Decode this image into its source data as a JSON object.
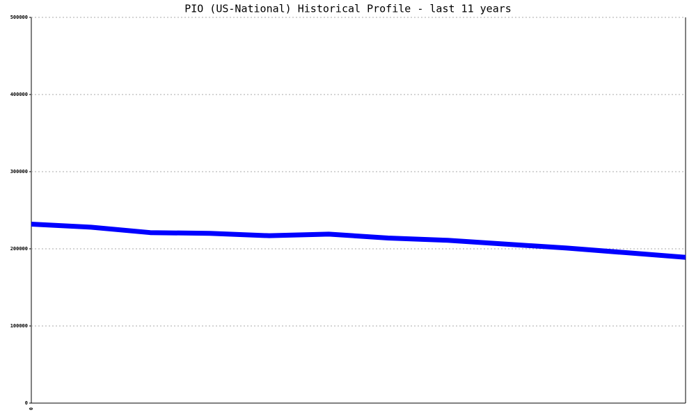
{
  "chart_data": {
    "type": "line",
    "title": "PIO (US-National) Historical Profile - last 11 years",
    "categories": [
      "0",
      null,
      null,
      null,
      null,
      null,
      null,
      null,
      null,
      null,
      null,
      null
    ],
    "series": [
      {
        "color": "#0000ff",
        "values": [
          232000,
          228000,
          221000,
          220000,
          217000,
          219000,
          214000,
          211000,
          206000,
          201000,
          195000,
          189000
        ]
      }
    ],
    "ylim": [
      0,
      500000
    ],
    "yticks": [
      0,
      100000,
      200000,
      300000,
      400000,
      500000
    ],
    "grid": true
  }
}
